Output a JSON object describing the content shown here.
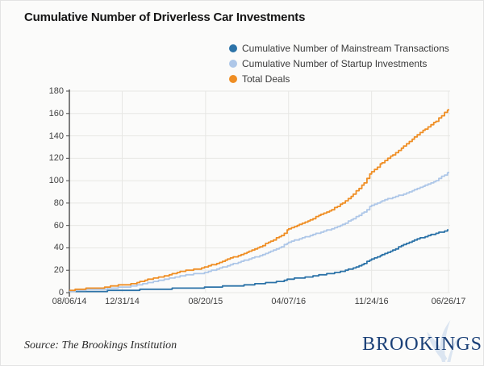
{
  "page": {
    "title": "Cumulative Number of Driverless Car Investments",
    "source_note": "Source: The Brookings Institution",
    "brand_wordmark": "BROOKINGS"
  },
  "colors": {
    "mainstream_line": "#2c73a8",
    "startup_line": "#aec7e8",
    "total_line": "#ef8e24",
    "axis_line": "#4a4a4a",
    "gridline": "#e7e7e4",
    "tick_text": "#404040",
    "brand_navy": "#1b4077",
    "brand_watermark": "#dbe5f1"
  },
  "chart_data": {
    "type": "line",
    "title": "Cumulative Number of Driverless Car Investments",
    "xlabel": "",
    "ylabel": "",
    "ylim": [
      0,
      180
    ],
    "y_ticks": [
      0,
      20,
      40,
      60,
      80,
      100,
      120,
      140,
      160,
      180
    ],
    "grid": true,
    "legend_position": "top-right",
    "x_unit": "days since 08/06/14",
    "x_ticks": [
      {
        "day": 0,
        "label": "08/06/14"
      },
      {
        "day": 147,
        "label": "12/31/14"
      },
      {
        "day": 379,
        "label": "08/20/15"
      },
      {
        "day": 610,
        "label": "04/07/16"
      },
      {
        "day": 841,
        "label": "11/24/16"
      },
      {
        "day": 1055,
        "label": "06/26/17"
      }
    ],
    "series": [
      {
        "name": "Cumulative Number of Mainstream Transactions",
        "color": "#2c73a8",
        "points": [
          [
            0,
            1
          ],
          [
            30,
            1
          ],
          [
            60,
            1
          ],
          [
            90,
            1
          ],
          [
            120,
            2
          ],
          [
            147,
            2
          ],
          [
            180,
            2
          ],
          [
            210,
            3
          ],
          [
            240,
            3
          ],
          [
            270,
            3
          ],
          [
            300,
            4
          ],
          [
            330,
            4
          ],
          [
            360,
            4
          ],
          [
            379,
            5
          ],
          [
            410,
            5
          ],
          [
            440,
            6
          ],
          [
            470,
            6
          ],
          [
            500,
            7
          ],
          [
            530,
            8
          ],
          [
            560,
            9
          ],
          [
            590,
            10
          ],
          [
            610,
            12
          ],
          [
            640,
            13
          ],
          [
            670,
            14
          ],
          [
            700,
            16
          ],
          [
            730,
            17
          ],
          [
            760,
            19
          ],
          [
            790,
            22
          ],
          [
            820,
            26
          ],
          [
            841,
            30
          ],
          [
            870,
            34
          ],
          [
            900,
            38
          ],
          [
            930,
            43
          ],
          [
            960,
            47
          ],
          [
            990,
            50
          ],
          [
            1020,
            53
          ],
          [
            1055,
            56
          ]
        ]
      },
      {
        "name": "Cumulative Number of Startup Investments",
        "color": "#aec7e8",
        "points": [
          [
            0,
            1
          ],
          [
            30,
            2
          ],
          [
            60,
            3
          ],
          [
            90,
            3
          ],
          [
            120,
            4
          ],
          [
            147,
            5
          ],
          [
            180,
            6
          ],
          [
            210,
            8
          ],
          [
            240,
            10
          ],
          [
            270,
            12
          ],
          [
            300,
            14
          ],
          [
            330,
            16
          ],
          [
            360,
            17
          ],
          [
            379,
            18
          ],
          [
            410,
            21
          ],
          [
            440,
            24
          ],
          [
            470,
            27
          ],
          [
            500,
            30
          ],
          [
            530,
            33
          ],
          [
            560,
            37
          ],
          [
            590,
            41
          ],
          [
            610,
            45
          ],
          [
            640,
            48
          ],
          [
            670,
            51
          ],
          [
            700,
            54
          ],
          [
            730,
            57
          ],
          [
            760,
            61
          ],
          [
            790,
            66
          ],
          [
            820,
            72
          ],
          [
            841,
            78
          ],
          [
            870,
            82
          ],
          [
            900,
            85
          ],
          [
            930,
            88
          ],
          [
            960,
            92
          ],
          [
            990,
            96
          ],
          [
            1020,
            100
          ],
          [
            1055,
            108
          ]
        ]
      },
      {
        "name": "Total Deals",
        "color": "#ef8e24",
        "points": [
          [
            0,
            2
          ],
          [
            30,
            3
          ],
          [
            60,
            4
          ],
          [
            90,
            4
          ],
          [
            120,
            6
          ],
          [
            147,
            7
          ],
          [
            180,
            8
          ],
          [
            210,
            11
          ],
          [
            240,
            13
          ],
          [
            270,
            15
          ],
          [
            300,
            18
          ],
          [
            330,
            20
          ],
          [
            360,
            21
          ],
          [
            379,
            23
          ],
          [
            410,
            26
          ],
          [
            440,
            30
          ],
          [
            470,
            33
          ],
          [
            500,
            37
          ],
          [
            530,
            41
          ],
          [
            560,
            46
          ],
          [
            590,
            51
          ],
          [
            610,
            57
          ],
          [
            640,
            61
          ],
          [
            670,
            65
          ],
          [
            700,
            70
          ],
          [
            730,
            74
          ],
          [
            760,
            80
          ],
          [
            790,
            88
          ],
          [
            820,
            98
          ],
          [
            841,
            108
          ],
          [
            870,
            116
          ],
          [
            900,
            123
          ],
          [
            930,
            131
          ],
          [
            960,
            139
          ],
          [
            990,
            146
          ],
          [
            1020,
            153
          ],
          [
            1055,
            164
          ]
        ]
      }
    ]
  }
}
